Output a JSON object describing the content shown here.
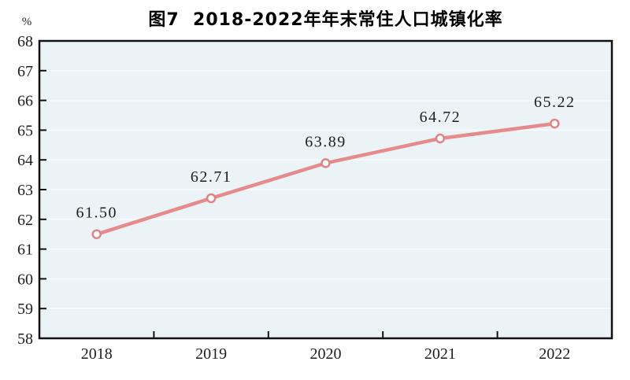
{
  "chart_data": {
    "type": "line",
    "title": "图7  2018-2022年年末常住人口城镇化率",
    "unit_label": "%",
    "categories": [
      "2018",
      "2019",
      "2020",
      "2021",
      "2022"
    ],
    "values": [
      61.5,
      62.71,
      63.89,
      64.72,
      65.22
    ],
    "data_labels": [
      "61.50",
      "62.71",
      "63.89",
      "64.72",
      "65.22"
    ],
    "ylim": [
      58,
      68
    ],
    "yticks": [
      58,
      59,
      60,
      61,
      62,
      63,
      64,
      65,
      66,
      67,
      68
    ],
    "grid": true,
    "legend": "none",
    "marker": "circle",
    "colors": {
      "line": "#e58b8b",
      "marker_fill": "#ffffff",
      "marker_stroke": "#e08383",
      "plot_background": "#ebf3f7",
      "gridline": "#f8fbfd",
      "axis": "#111111",
      "text": "#1f1f1f",
      "title": "#000000",
      "page_background": "#ffffff"
    }
  }
}
